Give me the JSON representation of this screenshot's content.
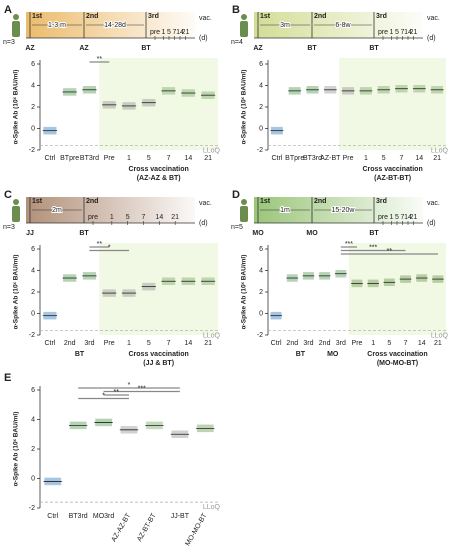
{
  "chart_data": [
    {
      "type": "strip",
      "panel": "A",
      "ylabel": "α-Spike Ab (10ˣ BAU/ml)",
      "ylim": [
        -2,
        6
      ],
      "yticks": [
        -2,
        0,
        2,
        4,
        6
      ],
      "lloq": {
        "value": -1.6,
        "label": "LLoQ"
      },
      "categories": [
        "Ctrl",
        "BTpre",
        "BT3rd",
        "Pre",
        "1",
        "5",
        "7",
        "14",
        "21"
      ],
      "values": [
        -0.2,
        3.4,
        3.6,
        2.2,
        2.1,
        2.4,
        3.5,
        3.3,
        3.1
      ],
      "colors": [
        "#3a7fc1",
        "#5aa05a",
        "#5aa05a",
        "#9a9a9a",
        "#9a9a9a",
        "#9a9a9a",
        "#7fae6f",
        "#7fae6f",
        "#7fae6f"
      ],
      "groups": [
        {
          "label": "Cross vaccination",
          "sub": "(AZ-AZ & BT)",
          "from": 3,
          "to": 8
        }
      ],
      "significance": [
        {
          "label": "**",
          "from": 2,
          "to": 3
        }
      ],
      "timeline": {
        "n": "n=3",
        "color": "#e9b45c",
        "doses": [
          {
            "label": "1st",
            "vaccine": "AZ"
          },
          {
            "label": "2nd",
            "vaccine": "AZ"
          },
          {
            "label": "3rd",
            "vaccine": "BT"
          }
        ],
        "intervals": [
          "1-3 m",
          "14-28d"
        ],
        "days": [
          "pre",
          "1",
          "5",
          "7",
          "14",
          "21"
        ],
        "unit": "(d)",
        "vac": "vac."
      }
    },
    {
      "type": "strip",
      "panel": "B",
      "ylabel": "α-Spike Ab (10ˣ BAU/ml)",
      "ylim": [
        -2,
        6
      ],
      "yticks": [
        -2,
        0,
        2,
        4,
        6
      ],
      "lloq": {
        "value": -1.6,
        "label": "LLoQ"
      },
      "categories": [
        "Ctrl",
        "BTpre",
        "BT3rd",
        "AZ-BT",
        "Pre",
        "1",
        "5",
        "7",
        "14",
        "21"
      ],
      "values": [
        -0.2,
        3.5,
        3.6,
        3.6,
        3.5,
        3.5,
        3.6,
        3.7,
        3.7,
        3.6
      ],
      "colors": [
        "#3a7fc1",
        "#5aa05a",
        "#5aa05a",
        "#9a9a9a",
        "#9a9a9a",
        "#7fae6f",
        "#7fae6f",
        "#7fae6f",
        "#7fae6f",
        "#7fae6f"
      ],
      "groups": [
        {
          "label": "Cross vaccination",
          "sub": "(AZ-BT-BT)",
          "from": 4,
          "to": 9
        }
      ],
      "significance": [],
      "timeline": {
        "n": "n=4",
        "color": "#cfd98a",
        "doses": [
          {
            "label": "1st",
            "vaccine": "AZ"
          },
          {
            "label": "2nd",
            "vaccine": "BT"
          },
          {
            "label": "3rd",
            "vaccine": "BT"
          }
        ],
        "intervals": [
          "3m",
          "6-8w"
        ],
        "days": [
          "pre",
          "1",
          "5",
          "7",
          "14",
          "21"
        ],
        "unit": "(d)",
        "vac": "vac."
      }
    },
    {
      "type": "strip",
      "panel": "C",
      "ylabel": "α-Spike Ab (10ˣ BAU/ml)",
      "ylim": [
        -2,
        6
      ],
      "yticks": [
        -2,
        0,
        2,
        4,
        6
      ],
      "lloq": {
        "value": -1.6,
        "label": "LLoQ"
      },
      "categories": [
        "Ctrl",
        "2nd",
        "3rd",
        "Pre",
        "1",
        "5",
        "7",
        "14",
        "21"
      ],
      "values": [
        -0.2,
        3.3,
        3.5,
        1.9,
        1.9,
        2.5,
        3.0,
        3.0,
        3.0
      ],
      "colors": [
        "#3a7fc1",
        "#5aa05a",
        "#5aa05a",
        "#9a9a9a",
        "#9a9a9a",
        "#9a9a9a",
        "#7fae6f",
        "#7fae6f",
        "#7fae6f"
      ],
      "groups": [
        {
          "label": "BT",
          "sub": "",
          "from": 1,
          "to": 2
        },
        {
          "label": "Cross vaccination",
          "sub": "(JJ & BT)",
          "from": 3,
          "to": 8
        }
      ],
      "significance": [
        {
          "label": "**",
          "from": 2,
          "to": 3
        },
        {
          "label": "*",
          "from": 2,
          "to": 4
        }
      ],
      "timeline": {
        "n": "n=3",
        "color": "#a9846a",
        "doses": [
          {
            "label": "1st",
            "vaccine": "JJ"
          },
          {
            "label": "2nd",
            "vaccine": "BT"
          }
        ],
        "intervals": [
          "2m"
        ],
        "days": [
          "pre",
          "1",
          "5",
          "7",
          "14",
          "21"
        ],
        "unit": "(d)",
        "vac": "vac."
      }
    },
    {
      "type": "strip",
      "panel": "D",
      "ylabel": "α-Spike Ab (10ˣ BAU/ml)",
      "ylim": [
        -2,
        6
      ],
      "yticks": [
        -2,
        0,
        2,
        4,
        6
      ],
      "lloq": {
        "value": -1.6,
        "label": "LLoQ"
      },
      "categories": [
        "Ctrl",
        "2nd",
        "3rd",
        "2nd",
        "3rd",
        "Pre",
        "1",
        "5",
        "7",
        "14",
        "21"
      ],
      "values": [
        -0.2,
        3.3,
        3.5,
        3.5,
        3.7,
        2.8,
        2.8,
        2.9,
        3.2,
        3.3,
        3.2
      ],
      "colors": [
        "#3a7fc1",
        "#5aa05a",
        "#5aa05a",
        "#5aa05a",
        "#5aa05a",
        "#6f9f55",
        "#6f9f55",
        "#6f9f55",
        "#6f9f55",
        "#6f9f55",
        "#6f9f55"
      ],
      "groups": [
        {
          "label": "BT",
          "sub": "",
          "from": 1,
          "to": 2
        },
        {
          "label": "MO",
          "sub": "",
          "from": 3,
          "to": 4
        },
        {
          "label": "Cross vaccination",
          "sub": "(MO-MO-BT)",
          "from": 5,
          "to": 10
        }
      ],
      "significance": [
        {
          "label": "***",
          "from": 4,
          "to": 5
        },
        {
          "label": "***",
          "from": 4,
          "to": 8
        },
        {
          "label": "**",
          "from": 4,
          "to": 10
        }
      ],
      "timeline": {
        "n": "n=5",
        "color": "#8fbf6a",
        "doses": [
          {
            "label": "1st",
            "vaccine": "MO"
          },
          {
            "label": "2nd",
            "vaccine": "MO"
          },
          {
            "label": "3rd",
            "vaccine": "BT"
          }
        ],
        "intervals": [
          "1m",
          "15-20w"
        ],
        "days": [
          "pre",
          "1",
          "5",
          "7",
          "14",
          "21"
        ],
        "unit": "(d)",
        "vac": "vac."
      }
    },
    {
      "type": "strip",
      "panel": "E",
      "ylabel": "α-Spike Ab (10ˣ BAU/ml)",
      "ylim": [
        -2,
        6
      ],
      "yticks": [
        -2,
        0,
        2,
        4,
        6
      ],
      "lloq": {
        "value": -1.6,
        "label": "LLoQ"
      },
      "categories": [
        "Ctrl",
        "BT3rd",
        "MO3rd",
        "AZ-AZ-BT",
        "AZ-BT-BT",
        "JJ-BT",
        "MO-MO-BT"
      ],
      "values": [
        -0.2,
        3.6,
        3.8,
        3.3,
        3.6,
        3.0,
        3.4
      ],
      "colors": [
        "#3a7fc1",
        "#5aa05a",
        "#5aa05a",
        "#9a9a9a",
        "#7fae6f",
        "#9a9a9a",
        "#6f9f55"
      ],
      "groups": [],
      "significance": [
        {
          "label": "*",
          "from": 1,
          "to": 5
        },
        {
          "label": "***",
          "from": 2,
          "to": 5
        },
        {
          "label": "**",
          "from": 2,
          "to": 3
        },
        {
          "label": "*",
          "from": 1,
          "to": 3
        }
      ]
    }
  ]
}
